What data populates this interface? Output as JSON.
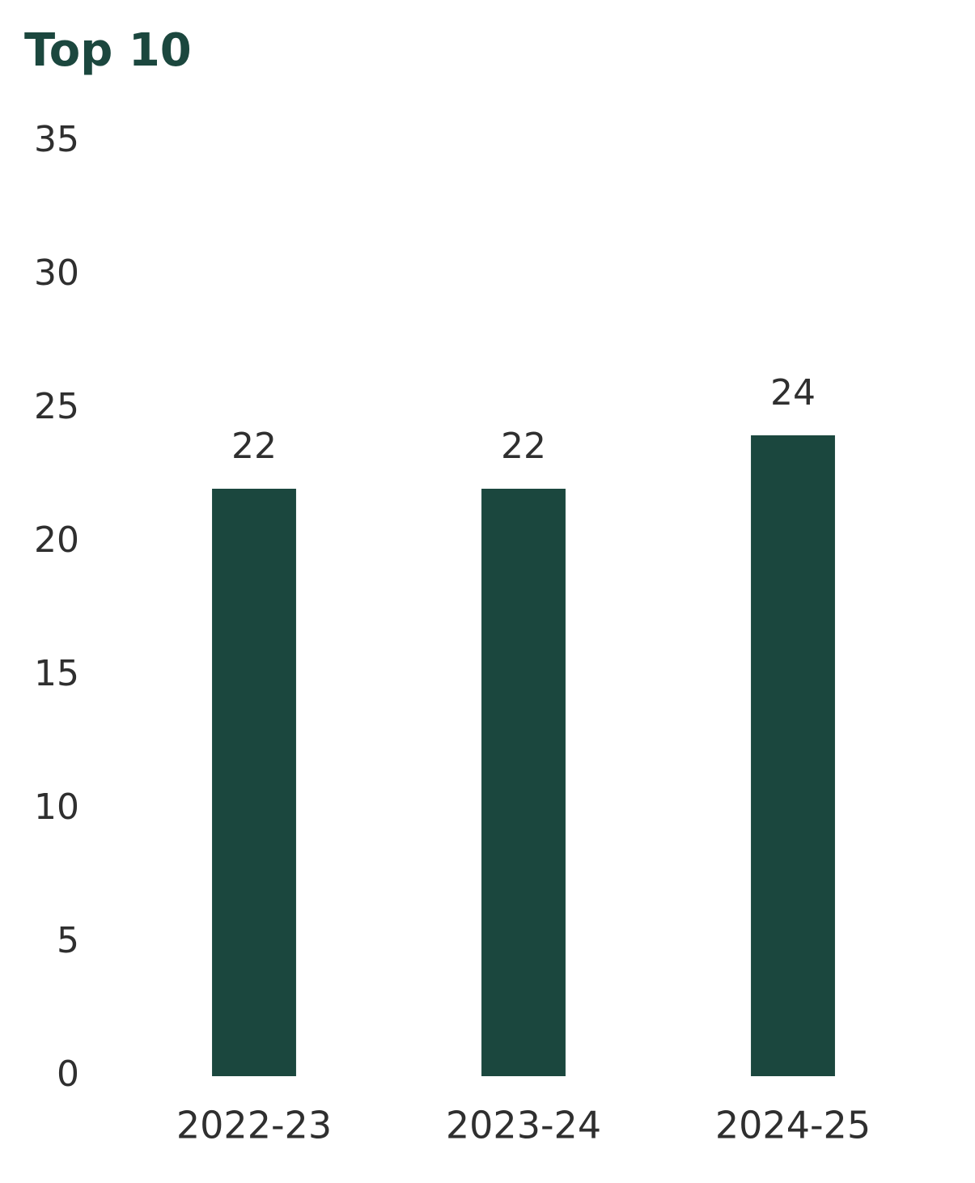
{
  "chart_data": {
    "type": "bar",
    "title": "Top 10",
    "categories": [
      "2022-23",
      "2023-24",
      "2024-25"
    ],
    "values": [
      22,
      22,
      24
    ],
    "color": "#1b473e",
    "ylim": [
      0,
      35
    ],
    "yticks": [
      0,
      5,
      10,
      15,
      20,
      25,
      30,
      35
    ],
    "grid": false,
    "data_labels": true
  }
}
